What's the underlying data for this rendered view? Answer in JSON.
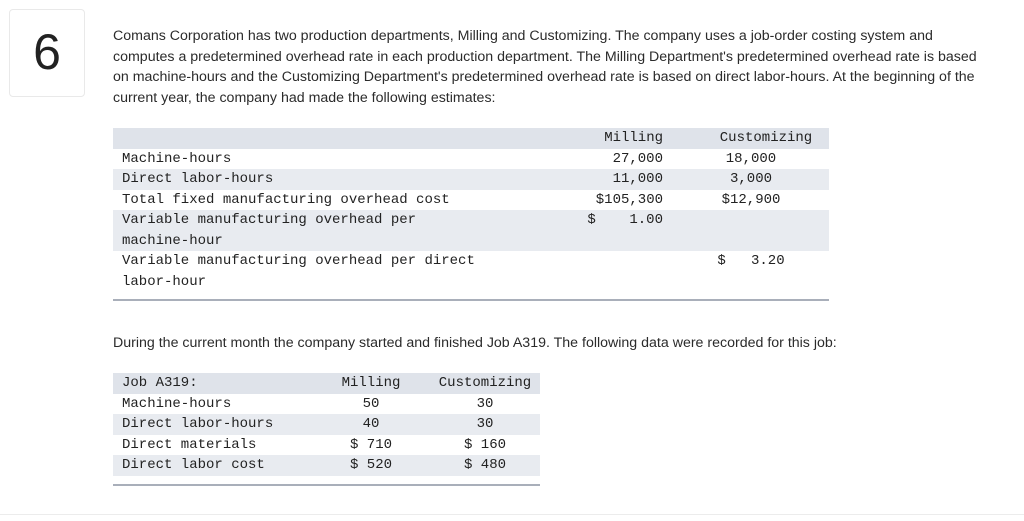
{
  "question": {
    "number": "6"
  },
  "prompt": {
    "intro": "Comans Corporation has two production departments, Milling and Customizing. The company uses a job-order costing system and computes a predetermined overhead rate in each production department. The Milling Department's predetermined overhead rate is based on machine-hours and the Customizing Department's predetermined overhead rate is based on direct labor-hours. At the beginning of the current year, the company had made the following estimates:",
    "job_intro": "During the current month the company started and finished Job A319. The following data were recorded for this job:"
  },
  "estimates_table": {
    "headers": [
      "",
      "Milling",
      "Customizing"
    ],
    "rows": [
      {
        "label": "Machine-hours",
        "milling": "27,000",
        "customizing": "18,000"
      },
      {
        "label": "Direct labor-hours",
        "milling": "11,000",
        "customizing": "3,000"
      },
      {
        "label": "Total fixed manufacturing overhead cost",
        "milling": "$105,300",
        "customizing": "$12,900"
      },
      {
        "label_line1": "Variable manufacturing overhead per",
        "label_line2": "machine-hour",
        "milling": "$    1.00",
        "customizing": ""
      },
      {
        "label_line1": "Variable manufacturing overhead per direct",
        "label_line2": "labor-hour",
        "milling": "",
        "customizing": "$   3.20"
      }
    ]
  },
  "job_table": {
    "headers": [
      "Job A319:",
      "Milling",
      "Customizing"
    ],
    "rows": [
      {
        "label": "Machine-hours",
        "milling": "50",
        "customizing": "30"
      },
      {
        "label": "Direct labor-hours",
        "milling": "40",
        "customizing": "30"
      },
      {
        "label": "Direct materials",
        "milling": "$ 710",
        "customizing": "$ 160"
      },
      {
        "label": "Direct labor cost",
        "milling": "$ 520",
        "customizing": "$ 480"
      }
    ]
  }
}
